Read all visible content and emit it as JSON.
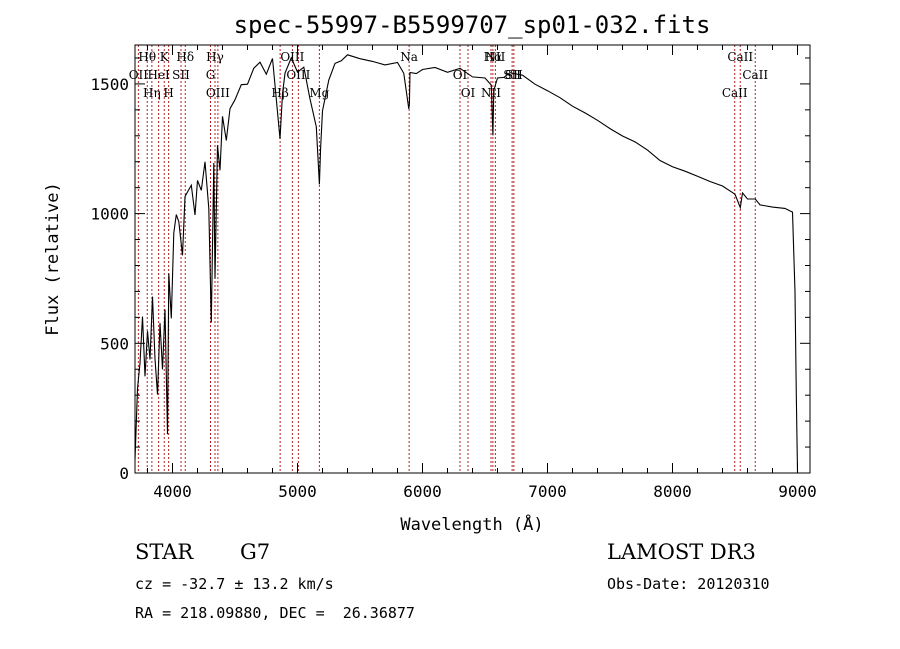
{
  "chart_data": {
    "type": "line",
    "title": "spec-55997-B5599707_sp01-032.fits",
    "xlabel": "Wavelength (Å)",
    "ylabel": "Flux (relative)",
    "xlim": [
      3700,
      9100
    ],
    "ylim": [
      0,
      1650
    ],
    "xticks": [
      4000,
      5000,
      6000,
      7000,
      8000,
      9000
    ],
    "yticks": [
      0,
      500,
      1000,
      1500
    ],
    "x_tick_labels": [
      "4000",
      "5000",
      "6000",
      "7000",
      "8000",
      "9000"
    ],
    "y_tick_labels": [
      "0",
      "500",
      "1000",
      "1500"
    ],
    "series": [
      {
        "name": "flux",
        "x": [
          3700,
          3720,
          3740,
          3760,
          3780,
          3800,
          3820,
          3840,
          3860,
          3880,
          3900,
          3920,
          3940,
          3960,
          3970,
          3990,
          4010,
          4030,
          4050,
          4080,
          4100,
          4120,
          4150,
          4180,
          4200,
          4230,
          4260,
          4290,
          4310,
          4330,
          4340,
          4360,
          4380,
          4400,
          4430,
          4460,
          4500,
          4550,
          4600,
          4650,
          4700,
          4750,
          4800,
          4850,
          4860,
          4880,
          4900,
          4950,
          5000,
          5050,
          5100,
          5150,
          5175,
          5185,
          5200,
          5250,
          5300,
          5350,
          5400,
          5500,
          5600,
          5700,
          5800,
          5850,
          5890,
          5895,
          5900,
          5950,
          6000,
          6100,
          6200,
          6300,
          6400,
          6500,
          6550,
          6563,
          6570,
          6600,
          6650,
          6700,
          6800,
          6900,
          7000,
          7100,
          7200,
          7300,
          7400,
          7500,
          7600,
          7700,
          7800,
          7900,
          8000,
          8100,
          8200,
          8300,
          8400,
          8500,
          8542,
          8560,
          8600,
          8662,
          8700,
          8800,
          8900,
          8960,
          8980,
          8990,
          9000
        ],
        "values": [
          50,
          300,
          450,
          600,
          380,
          550,
          430,
          700,
          450,
          300,
          550,
          380,
          650,
          120,
          750,
          600,
          900,
          1000,
          960,
          850,
          1050,
          1080,
          1100,
          1000,
          1150,
          1100,
          1200,
          1050,
          600,
          1200,
          720,
          1250,
          1180,
          1380,
          1300,
          1400,
          1420,
          1480,
          1500,
          1550,
          1580,
          1520,
          1600,
          1350,
          1280,
          1450,
          1550,
          1600,
          1560,
          1580,
          1450,
          1350,
          1100,
          1250,
          1400,
          1500,
          1580,
          1600,
          1620,
          1610,
          1600,
          1590,
          1570,
          1560,
          1420,
          1440,
          1540,
          1550,
          1560,
          1570,
          1550,
          1560,
          1540,
          1530,
          1500,
          1300,
          1480,
          1520,
          1530,
          1550,
          1530,
          1500,
          1480,
          1450,
          1420,
          1390,
          1360,
          1330,
          1300,
          1270,
          1240,
          1210,
          1180,
          1160,
          1140,
          1120,
          1100,
          1080,
          1030,
          1080,
          1060,
          1050,
          1040,
          1030,
          1020,
          1000,
          700,
          300,
          5
        ]
      }
    ],
    "lines": [
      {
        "label": "Hθ",
        "x": 3798
      },
      {
        "label": "OII",
        "x": 3727
      },
      {
        "label": "Hη",
        "x": 3835
      },
      {
        "label": "K",
        "x": 3934
      },
      {
        "label": "HeI",
        "x": 3889
      },
      {
        "label": "H",
        "x": 3969
      },
      {
        "label": "Hδ",
        "x": 4102
      },
      {
        "label": "SII",
        "x": 4068
      },
      {
        "label": "OIII",
        "x": 4363
      },
      {
        "label": "Hγ",
        "x": 4340
      },
      {
        "label": "G",
        "x": 4304
      },
      {
        "label": "Hβ",
        "x": 4861
      },
      {
        "label": "OIII",
        "x": 4959
      },
      {
        "label": "OIII",
        "x": 5007
      },
      {
        "label": "Mg",
        "x": 5175
      },
      {
        "label": "Na",
        "x": 5893
      },
      {
        "label": "OI",
        "x": 6300
      },
      {
        "label": "OI",
        "x": 6364
      },
      {
        "label": "Hα",
        "x": 6563
      },
      {
        "label": "SII",
        "x": 6717
      },
      {
        "label": "NII",
        "x": 6548
      },
      {
        "label": "NII",
        "x": 6583
      },
      {
        "label": "SII",
        "x": 6731
      },
      {
        "label": "CaII",
        "x": 8498
      },
      {
        "label": "CaII",
        "x": 8542
      },
      {
        "label": "CaII",
        "x": 8662
      }
    ]
  },
  "info": {
    "object_class": "STAR",
    "subclass": "G7",
    "survey": "LAMOST DR3",
    "redshift_line": "cz = -32.7 ± 13.2 km/s",
    "obs_date_line": "Obs-Date: 20120310",
    "coords_line": "RA = 218.09880, DEC =  26.36877"
  }
}
